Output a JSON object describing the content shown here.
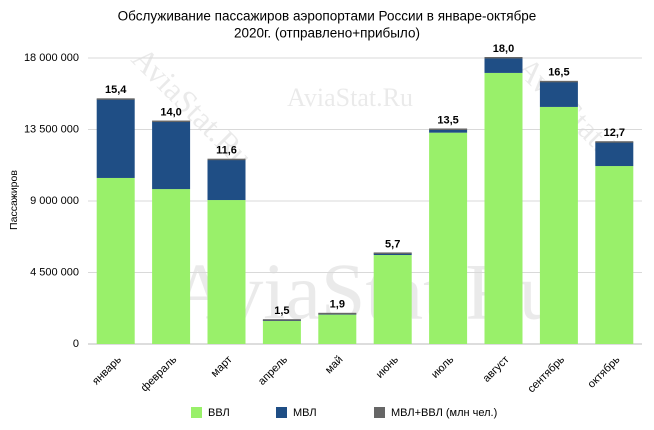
{
  "chart_data": {
    "type": "bar",
    "stacked": true,
    "title": [
      "Обслуживание пассажиров аэропортами России в январе-октябре",
      "2020г. (отправлено+прибыло)"
    ],
    "watermark": "AviaStat.Ru",
    "ylabel": "Пассажиров",
    "categories": [
      "январь",
      "февраль",
      "март",
      "апрель",
      "май",
      "июнь",
      "июль",
      "август",
      "сентябрь",
      "октябрь"
    ],
    "series": [
      {
        "name": "ВВЛ",
        "color": "#99f06a",
        "values": [
          10450000,
          9750000,
          9060000,
          1450000,
          1850000,
          5600000,
          13300000,
          17060000,
          14920000,
          11200000
        ]
      },
      {
        "name": "МВЛ",
        "color": "#1f4e85",
        "values": [
          4950000,
          4250000,
          2540000,
          50000,
          50000,
          100000,
          200000,
          940000,
          1580000,
          1500000
        ]
      }
    ],
    "totals": {
      "name": "МВЛ+ВВЛ (млн чел.)",
      "color": "#666666",
      "values": [
        15400000,
        14000000,
        11600000,
        1500000,
        1900000,
        5700000,
        13500000,
        18000000,
        16500000,
        12700000
      ],
      "value_labels": [
        "15,4",
        "14,0",
        "11,6",
        "1,5",
        "1,9",
        "5,7",
        "13,5",
        "18,0",
        "16,5",
        "12,7"
      ]
    },
    "ylim": [
      0,
      18000000
    ],
    "yticks": [
      0,
      {
        "value": 4500000,
        "label": "4 500 000"
      },
      {
        "value": 9000000,
        "label": "9 000 000"
      },
      {
        "value": 13500000,
        "label": "13 500 000"
      },
      {
        "value": 18000000,
        "label": "18 000 000"
      }
    ],
    "grid": true
  }
}
